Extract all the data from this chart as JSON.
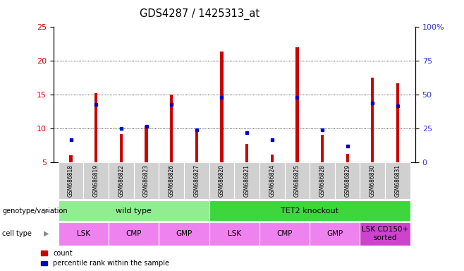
{
  "title": "GDS4287 / 1425313_at",
  "samples": [
    "GSM686818",
    "GSM686819",
    "GSM686822",
    "GSM686823",
    "GSM686826",
    "GSM686827",
    "GSM686820",
    "GSM686821",
    "GSM686824",
    "GSM686825",
    "GSM686828",
    "GSM686829",
    "GSM686830",
    "GSM686831"
  ],
  "counts": [
    6.1,
    15.2,
    9.2,
    10.5,
    15.0,
    10.0,
    21.4,
    7.8,
    6.2,
    22.0,
    9.1,
    6.3,
    17.5,
    16.7
  ],
  "percentiles_pct": [
    17,
    43,
    25,
    27,
    43,
    24,
    48,
    22,
    17,
    48,
    24,
    12,
    44,
    42
  ],
  "ymin": 5,
  "ymax": 25,
  "yticks_left": [
    5,
    10,
    15,
    20,
    25
  ],
  "y2min": 0,
  "y2max": 100,
  "yticks_right": [
    0,
    25,
    50,
    75,
    100
  ],
  "bar_color": "#cc0000",
  "dot_color": "#0000cc",
  "bar_width": 0.12,
  "genotype_groups": [
    {
      "label": "wild type",
      "start": 0,
      "end": 6,
      "color": "#90ee90"
    },
    {
      "label": "TET2 knockout",
      "start": 6,
      "end": 14,
      "color": "#3dd63d"
    }
  ],
  "cell_type_groups": [
    {
      "label": "LSK",
      "start": 0,
      "end": 2,
      "color": "#ee82ee"
    },
    {
      "label": "CMP",
      "start": 2,
      "end": 4,
      "color": "#ee82ee"
    },
    {
      "label": "GMP",
      "start": 4,
      "end": 6,
      "color": "#ee82ee"
    },
    {
      "label": "LSK",
      "start": 6,
      "end": 8,
      "color": "#ee82ee"
    },
    {
      "label": "CMP",
      "start": 8,
      "end": 10,
      "color": "#ee82ee"
    },
    {
      "label": "GMP",
      "start": 10,
      "end": 12,
      "color": "#ee82ee"
    },
    {
      "label": "LSK CD150+\nsorted",
      "start": 12,
      "end": 14,
      "color": "#cc44cc"
    }
  ],
  "ylabel_left_color": "#cc0000",
  "ylabel_right_color": "#3333cc"
}
